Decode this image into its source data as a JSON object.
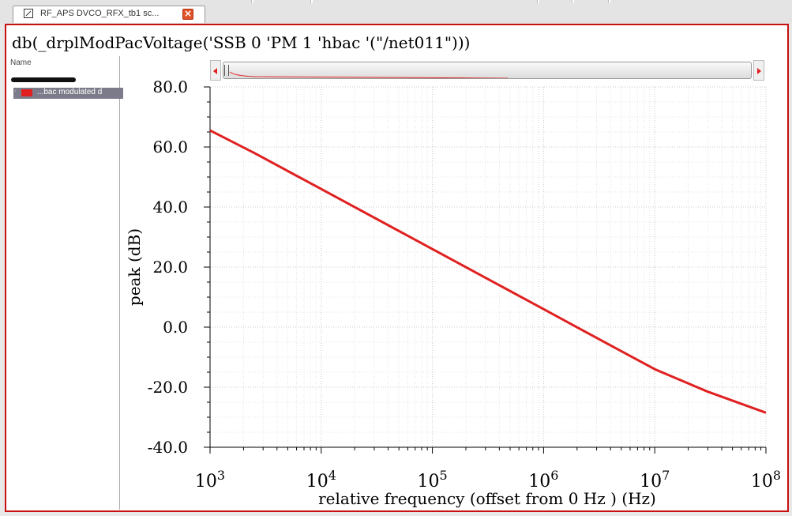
{
  "window": {
    "tab_label": "RF_APS DVCO_RFX_tb1 sc...",
    "tab_icon": "graph-icon",
    "close_icon": "close-icon"
  },
  "plot": {
    "expression_title": "db(_drplModPacVoltage('SSB 0 'PM 1 'hbac '(\"/net011\")))"
  },
  "trace_panel": {
    "header": "Name",
    "trace_label": "...bac modulated d",
    "trace_color": "#e02020"
  },
  "chart_data": {
    "type": "line",
    "xlabel": "relative frequency (offset from 0 Hz ) (Hz)",
    "ylabel": "peak (dB)",
    "x_scale": "log",
    "xlim": [
      1000,
      100000000
    ],
    "ylim": [
      -40,
      80
    ],
    "grid": true,
    "x_ticks": [
      {
        "base": "10",
        "exp": "3"
      },
      {
        "base": "10",
        "exp": "4"
      },
      {
        "base": "10",
        "exp": "5"
      },
      {
        "base": "10",
        "exp": "6"
      },
      {
        "base": "10",
        "exp": "7"
      },
      {
        "base": "10",
        "exp": "8"
      }
    ],
    "y_ticks": [
      "80.0",
      "60.0",
      "40.0",
      "20.0",
      "0.0",
      "-20.0",
      "-40.0"
    ],
    "series": [
      {
        "color": "#e02020",
        "x": [
          1000,
          2500,
          10000,
          100000,
          1000000,
          2500000,
          10000000,
          30000000,
          100000000
        ],
        "y": [
          65.5,
          58.0,
          46.0,
          26.0,
          6.0,
          -2.0,
          -14.0,
          -21.5,
          -28.5
        ]
      }
    ]
  }
}
